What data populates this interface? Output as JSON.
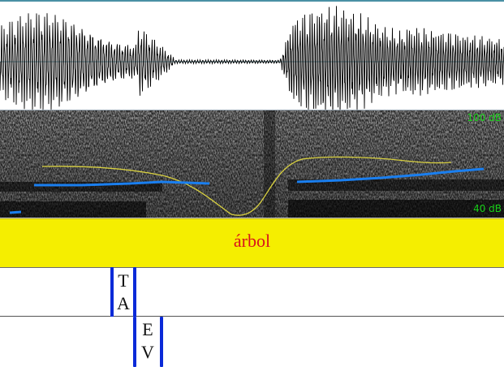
{
  "spectrogram": {
    "db_top_label": "100 dB",
    "db_bottom_label": "40 dB"
  },
  "word_tier": {
    "label": "árbol"
  },
  "tier_1": {
    "segments": [
      "T",
      "A"
    ]
  },
  "tier_2": {
    "segments": [
      "E",
      "V"
    ]
  },
  "colors": {
    "waveform": "#000000",
    "spectrogram_bg": "#111111",
    "intensity_line": "#d8d040",
    "pitch_line": "#1a7ff0",
    "word_tier_bg": "#f5ee00",
    "word_label": "#d8141c",
    "boundary": "#0a2ad8",
    "db_label": "#18d018"
  }
}
